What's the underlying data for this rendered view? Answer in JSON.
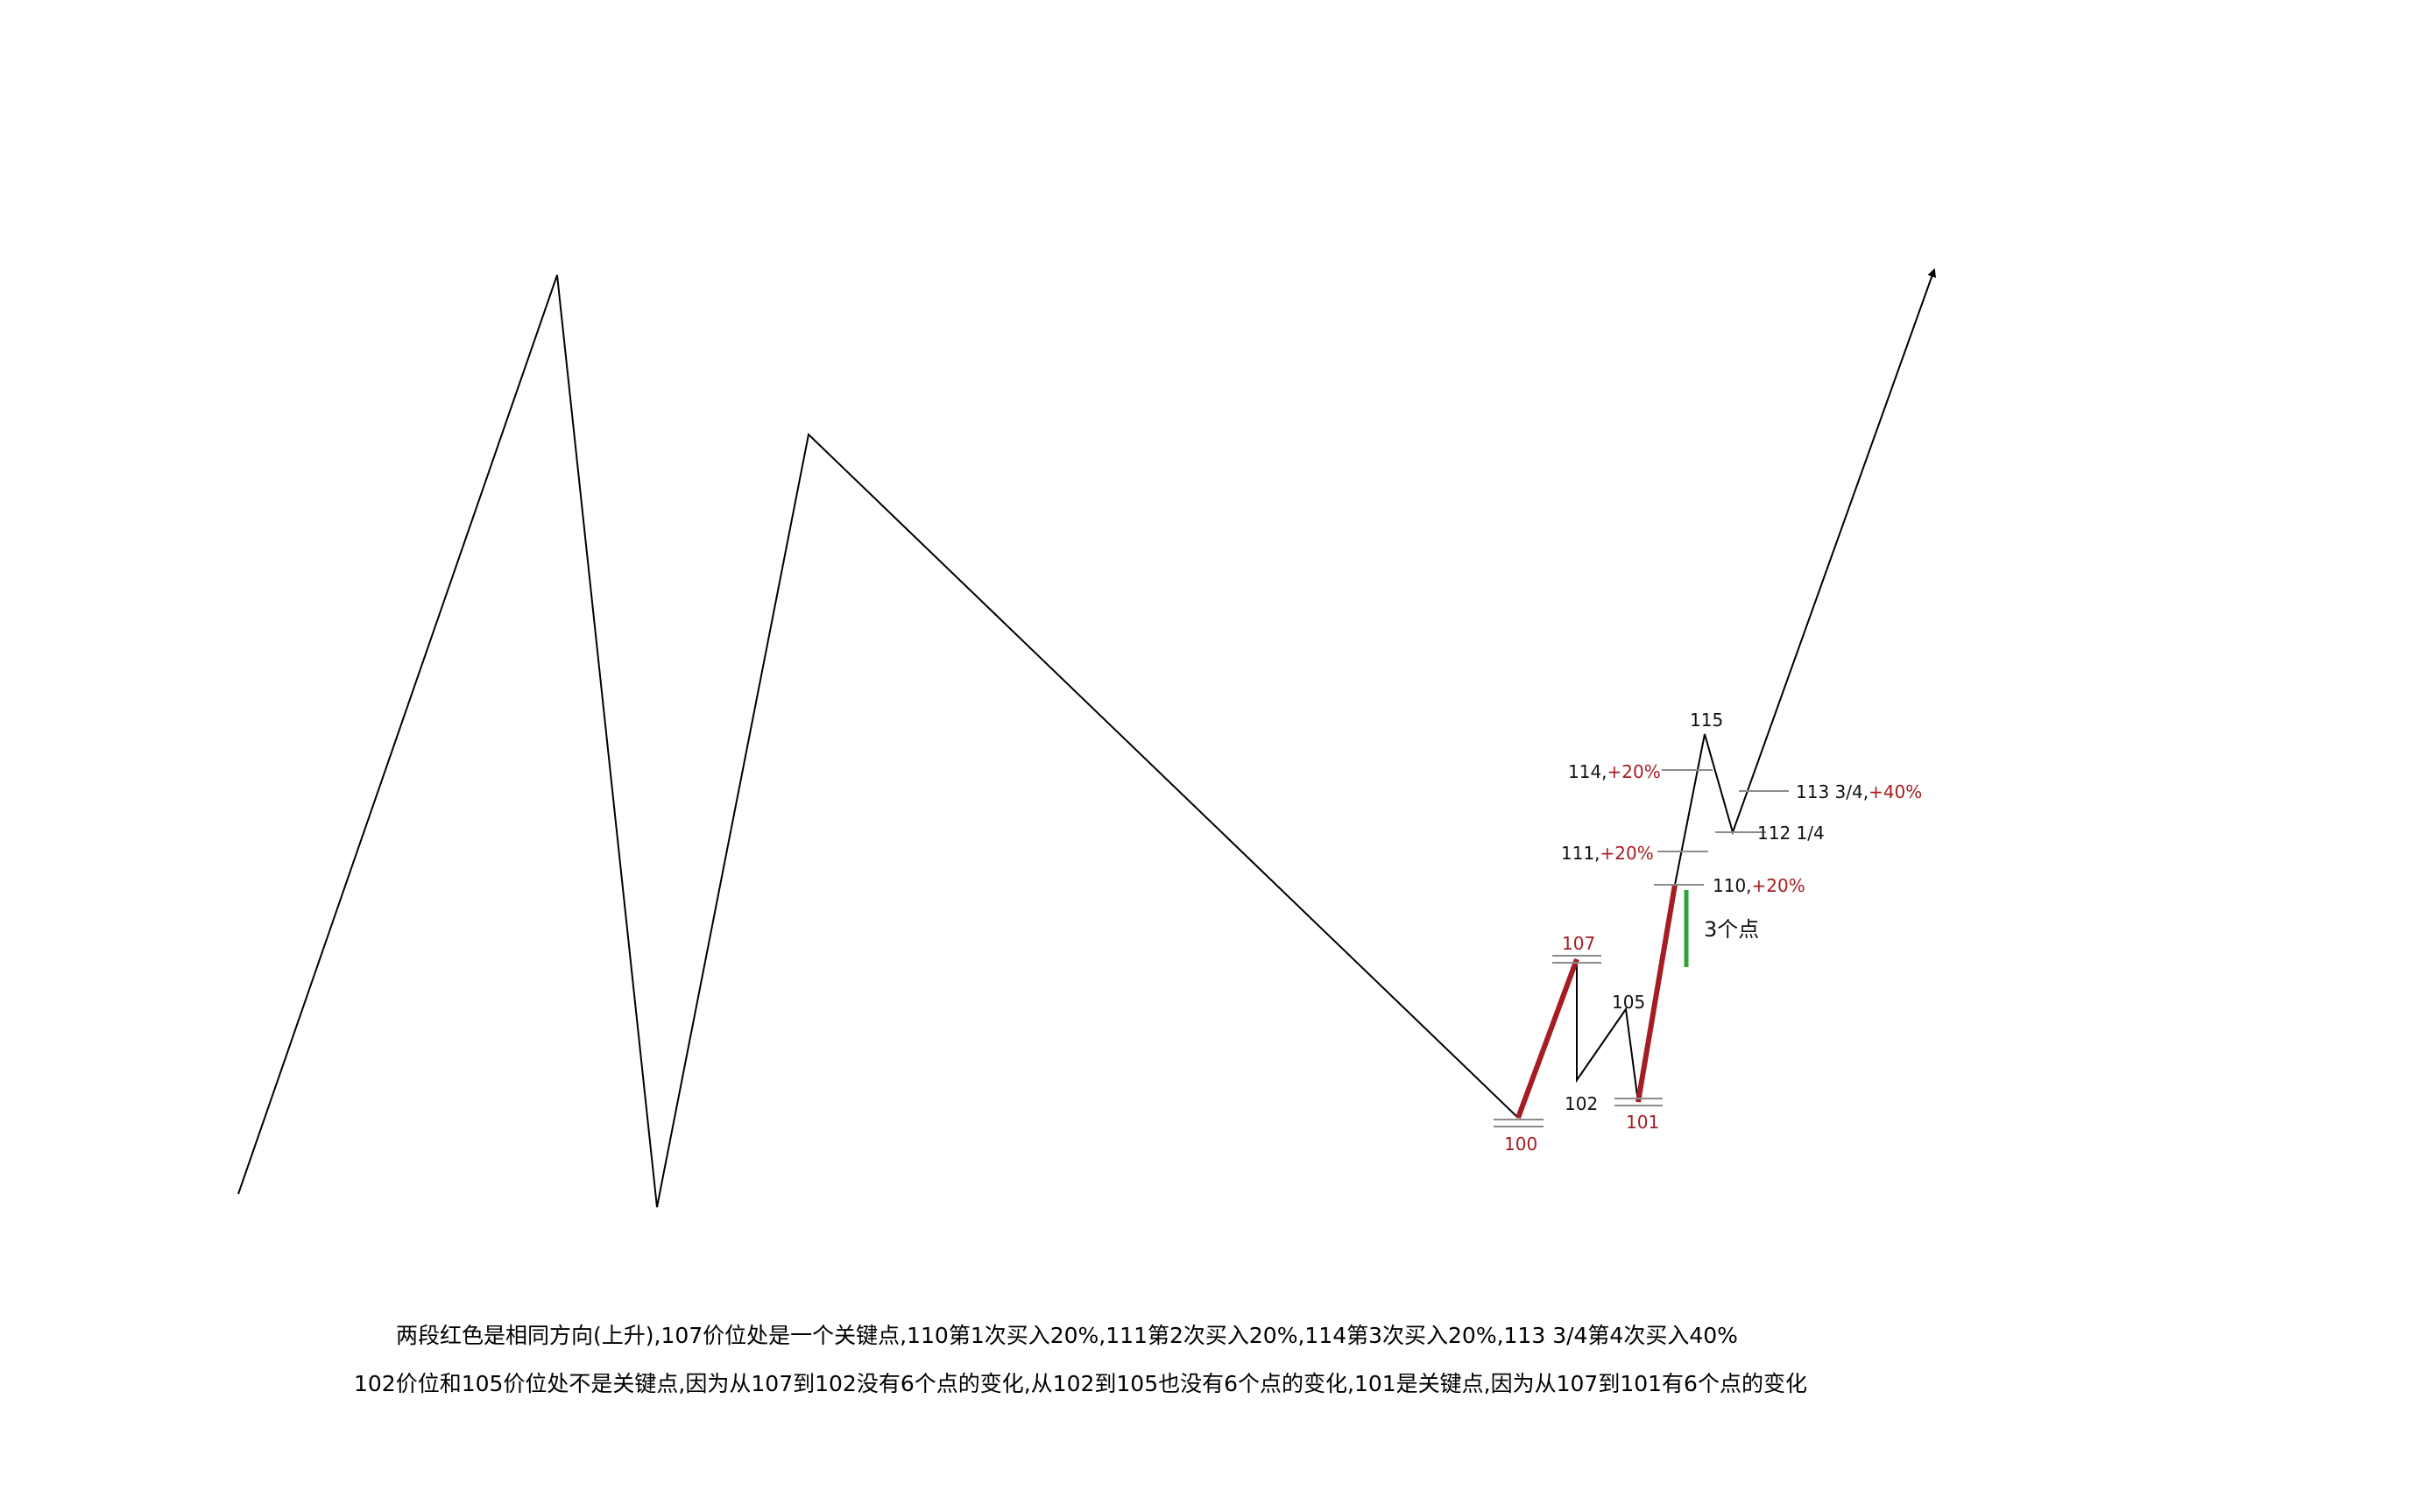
{
  "colors": {
    "background": "#ffffff",
    "price_line": "#000000",
    "key_segment": "#a51d22",
    "gap_marker": "#2ea33a",
    "level_tick": "#8c8c8c",
    "label_text": "#111111",
    "label_accent": "#a51d22"
  },
  "labels": {
    "p100": "100",
    "p107": "107",
    "p102": "102",
    "p105": "105",
    "p101": "101",
    "p110": "110,",
    "p110_pct": "+20%",
    "p111": "111,",
    "p111_pct": "+20%",
    "p114": "114,",
    "p114_pct": "+20%",
    "p115": "115",
    "p113": "113 3/4,",
    "p113_pct": "+40%",
    "p112": "112 1/4",
    "gap": "3个点"
  },
  "captions": {
    "line1": "两段红色是相同方向(上升),107价位处是一个关键点,110第1次买入20%,111第2次买入20%,114第3次买入20%,113  3/4第4次买入40%",
    "line2": "102价位和105价位处不是关键点,因为从107到102没有6个点的变化,从102到105也没有6个点的变化,101是关键点,因为从107到101有6个点的变化"
  }
}
